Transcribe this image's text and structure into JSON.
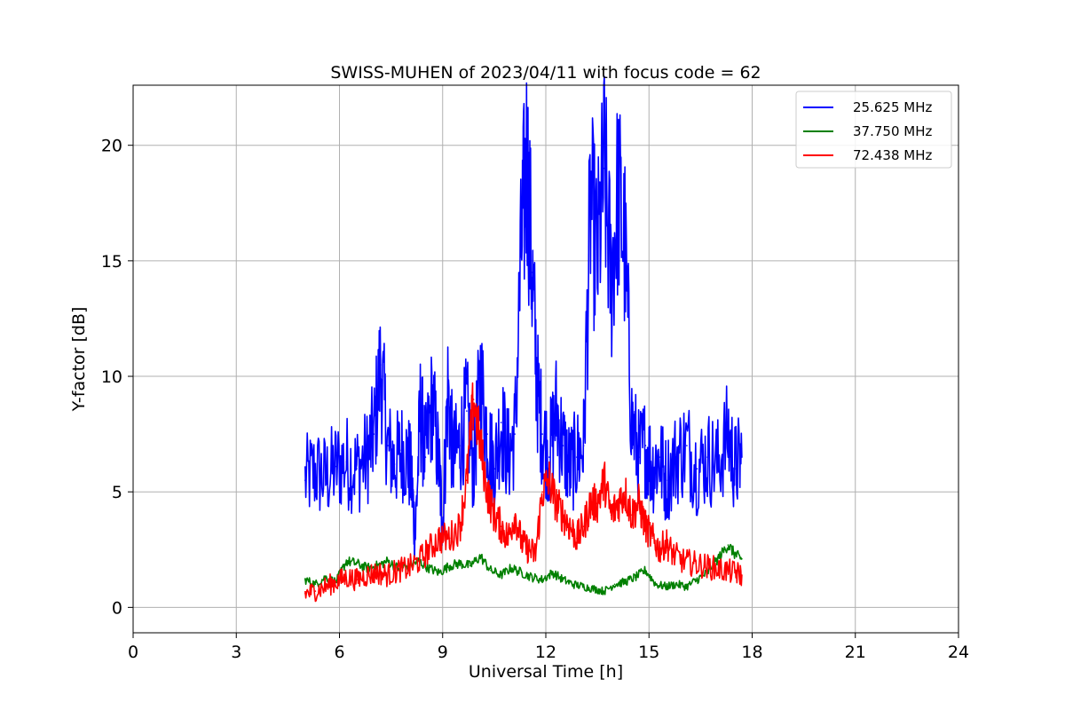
{
  "chart_data": {
    "type": "line",
    "title": "SWISS-MUHEN of 2023/04/11 with focus code = 62",
    "xlabel": "Universal Time [h]",
    "ylabel": "Y-factor [dB]",
    "xlim": [
      0,
      24
    ],
    "ylim": [
      -1.1,
      22.6
    ],
    "xticks": [
      0,
      3,
      6,
      9,
      12,
      15,
      18,
      21,
      24
    ],
    "yticks": [
      0,
      5,
      10,
      15,
      20
    ],
    "grid": true,
    "legend_position": "top-right",
    "series": [
      {
        "name": "25.625 MHz",
        "color": "#0000ff",
        "x": [
          5.0,
          5.3,
          5.6,
          5.9,
          6.2,
          6.5,
          6.8,
          7.0,
          7.2,
          7.4,
          7.6,
          7.8,
          8.0,
          8.1,
          8.2,
          8.35,
          8.5,
          8.7,
          8.9,
          9.0,
          9.15,
          9.3,
          9.5,
          9.7,
          9.9,
          10.1,
          10.3,
          10.5,
          10.7,
          10.9,
          11.1,
          11.3,
          11.45,
          11.6,
          11.75,
          11.9,
          12.1,
          12.3,
          12.5,
          12.7,
          12.9,
          13.1,
          13.3,
          13.5,
          13.7,
          13.9,
          14.1,
          14.3,
          14.5,
          14.7,
          14.9,
          15.1,
          15.3,
          15.5,
          15.8,
          16.1,
          16.4,
          16.7,
          17.0,
          17.3,
          17.5,
          17.7
        ],
        "y": [
          5.5,
          5.9,
          5.6,
          6.1,
          6.3,
          6.0,
          6.5,
          7.5,
          10.5,
          7.0,
          6.2,
          6.8,
          6.4,
          5.5,
          3.0,
          8.5,
          6.5,
          9.0,
          6.0,
          3.5,
          9.5,
          6.5,
          7.0,
          8.5,
          6.0,
          10.0,
          7.5,
          6.0,
          8.0,
          6.5,
          7.5,
          16.0,
          19.5,
          14.5,
          9.5,
          7.5,
          6.5,
          8.5,
          7.0,
          6.0,
          6.5,
          7.0,
          17.5,
          15.0,
          19.0,
          14.0,
          18.0,
          15.5,
          8.0,
          6.5,
          7.0,
          6.0,
          6.5,
          5.5,
          6.5,
          7.0,
          6.0,
          6.5,
          6.2,
          7.5,
          6.0,
          6.5
        ]
      },
      {
        "name": "37.750 MHz",
        "color": "#008000",
        "x": [
          5.0,
          5.3,
          5.6,
          5.9,
          6.2,
          6.5,
          6.8,
          7.1,
          7.4,
          7.7,
          8.0,
          8.3,
          8.6,
          8.9,
          9.2,
          9.5,
          9.8,
          10.1,
          10.4,
          10.7,
          11.0,
          11.3,
          11.6,
          11.9,
          12.2,
          12.5,
          12.8,
          13.1,
          13.4,
          13.7,
          14.0,
          14.3,
          14.6,
          14.9,
          15.2,
          15.5,
          15.8,
          16.1,
          16.4,
          16.7,
          17.0,
          17.3,
          17.5,
          17.7
        ],
        "y": [
          1.2,
          1.0,
          1.3,
          1.1,
          2.0,
          1.9,
          1.7,
          1.8,
          2.0,
          1.7,
          1.8,
          2.0,
          1.7,
          1.5,
          1.8,
          1.9,
          1.8,
          2.2,
          1.6,
          1.4,
          1.7,
          1.5,
          1.3,
          1.2,
          1.5,
          1.2,
          1.0,
          0.9,
          0.8,
          0.7,
          1.0,
          1.1,
          1.3,
          1.6,
          1.0,
          0.9,
          1.0,
          0.9,
          1.2,
          1.5,
          2.1,
          2.7,
          2.3,
          2.1
        ]
      },
      {
        "name": "72.438 MHz",
        "color": "#ff0000",
        "x": [
          5.0,
          5.3,
          5.6,
          5.9,
          6.2,
          6.5,
          6.8,
          7.1,
          7.4,
          7.7,
          8.0,
          8.3,
          8.6,
          8.9,
          9.2,
          9.5,
          9.7,
          9.9,
          10.1,
          10.3,
          10.5,
          10.7,
          10.9,
          11.1,
          11.3,
          11.5,
          11.7,
          11.9,
          12.1,
          12.3,
          12.5,
          12.7,
          12.9,
          13.1,
          13.3,
          13.5,
          13.7,
          13.9,
          14.1,
          14.3,
          14.5,
          14.7,
          14.9,
          15.1,
          15.3,
          15.5,
          15.7,
          16.0,
          16.3,
          16.6,
          16.9,
          17.2,
          17.5,
          17.7
        ],
        "y": [
          0.6,
          0.7,
          0.9,
          1.1,
          1.3,
          1.2,
          1.4,
          1.5,
          1.4,
          1.6,
          1.7,
          2.0,
          2.5,
          3.0,
          3.0,
          3.5,
          5.5,
          9.0,
          7.0,
          5.0,
          4.0,
          3.5,
          3.0,
          4.0,
          2.8,
          2.5,
          2.3,
          5.0,
          5.5,
          4.5,
          4.0,
          3.5,
          3.0,
          3.5,
          4.5,
          4.5,
          5.5,
          4.0,
          4.5,
          5.0,
          4.0,
          4.5,
          3.5,
          3.0,
          2.5,
          2.8,
          2.3,
          2.0,
          1.9,
          1.8,
          1.7,
          1.6,
          1.5,
          1.4
        ]
      }
    ]
  }
}
